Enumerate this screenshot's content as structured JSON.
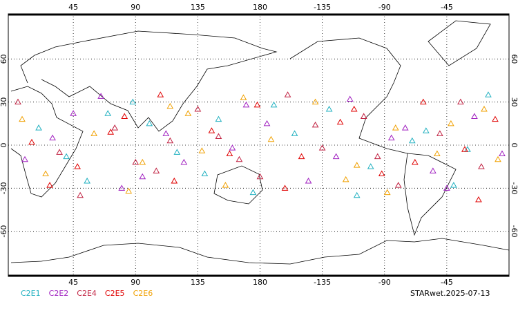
{
  "chart_data": {
    "type": "scatter",
    "xlim": [
      0,
      360
    ],
    "ylim": [
      -90,
      90
    ],
    "xticks": [
      45,
      90,
      135,
      180,
      {
        "value": 225,
        "label": "-135"
      },
      {
        "value": 270,
        "label": "-90"
      },
      {
        "value": 315,
        "label": "-45"
      }
    ],
    "yticks": [
      -60,
      -30,
      0,
      30,
      60
    ],
    "grid": true,
    "annotation": "STARwet.2025-07-13",
    "series": [
      {
        "name": "C2E1",
        "color": "#20b0c0",
        "x": [
          20,
          55,
          88,
          120,
          150,
          175,
          205,
          230,
          260,
          290,
          320,
          345,
          40,
          100,
          140,
          190,
          250,
          300,
          330,
          70
        ],
        "values": [
          12,
          -25,
          30,
          -5,
          18,
          -33,
          8,
          25,
          -15,
          3,
          -28,
          35,
          -8,
          15,
          -20,
          28,
          -35,
          10,
          -3,
          22
        ]
      },
      {
        "name": "C2E2",
        "color": "#a020c0",
        "x": [
          10,
          45,
          80,
          112,
          160,
          185,
          215,
          245,
          275,
          305,
          335,
          355,
          65,
          125,
          170,
          235,
          285,
          315,
          30,
          95
        ],
        "values": [
          -10,
          22,
          -30,
          8,
          -2,
          15,
          -25,
          32,
          5,
          -18,
          20,
          -6,
          34,
          -12,
          28,
          -8,
          12,
          -30,
          5,
          -22
        ]
      },
      {
        "name": "C2E4",
        "color": "#c02040",
        "x": [
          5,
          35,
          75,
          105,
          135,
          165,
          200,
          225,
          255,
          280,
          310,
          340,
          50,
          115,
          180,
          220,
          265,
          325,
          90,
          150
        ],
        "values": [
          30,
          -5,
          12,
          -18,
          25,
          -10,
          35,
          -2,
          20,
          -28,
          8,
          -15,
          -35,
          3,
          -22,
          14,
          -8,
          30,
          -12,
          6
        ]
      },
      {
        "name": "C2E5",
        "color": "#e00000",
        "x": [
          15,
          48,
          82,
          118,
          145,
          178,
          210,
          238,
          268,
          298,
          328,
          350,
          28,
          108,
          158,
          198,
          248,
          292,
          338,
          72
        ],
        "values": [
          2,
          -15,
          20,
          -25,
          10,
          28,
          -8,
          16,
          -20,
          30,
          -3,
          18,
          -28,
          35,
          -6,
          -30,
          25,
          -12,
          -38,
          9
        ]
      },
      {
        "name": "C2E6",
        "color": "#f0a000",
        "x": [
          25,
          60,
          95,
          128,
          155,
          188,
          220,
          250,
          278,
          308,
          342,
          8,
          85,
          138,
          168,
          242,
          272,
          318,
          352,
          115
        ],
        "values": [
          -20,
          8,
          -12,
          22,
          -28,
          4,
          30,
          -14,
          12,
          -6,
          25,
          18,
          -32,
          -4,
          33,
          -24,
          -33,
          15,
          -10,
          27
        ]
      }
    ]
  }
}
